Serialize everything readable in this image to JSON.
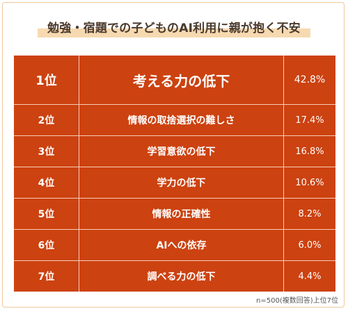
{
  "title": "勉強・宿題での子どものAI利用に親が抱く不安",
  "footnote": "n=500(複数回答)上位7位",
  "colors": {
    "row_bg": "#cc4210",
    "row_text": "#ffffff",
    "divider": "#f6cdb8",
    "title_highlight": "#f6d9b0",
    "frame": "#f0c79a"
  },
  "chart_data": {
    "type": "table",
    "title": "勉強・宿題での子どものAI利用に親が抱く不安",
    "rows": [
      {
        "rank": "1位",
        "item": "考える力の低下",
        "value_label": "42.8%",
        "value": 42.8
      },
      {
        "rank": "2位",
        "item": "情報の取捨選択の難しさ",
        "value_label": "17.4%",
        "value": 17.4
      },
      {
        "rank": "3位",
        "item": "学習意欲の低下",
        "value_label": "16.8%",
        "value": 16.8
      },
      {
        "rank": "4位",
        "item": "学力の低下",
        "value_label": "10.6%",
        "value": 10.6
      },
      {
        "rank": "5位",
        "item": "情報の正確性",
        "value_label": "8.2%",
        "value": 8.2
      },
      {
        "rank": "6位",
        "item": "AIへの依存",
        "value_label": "6.0%",
        "value": 6.0
      },
      {
        "rank": "7位",
        "item": "調べる力の低下",
        "value_label": "4.4%",
        "value": 4.4
      }
    ]
  }
}
